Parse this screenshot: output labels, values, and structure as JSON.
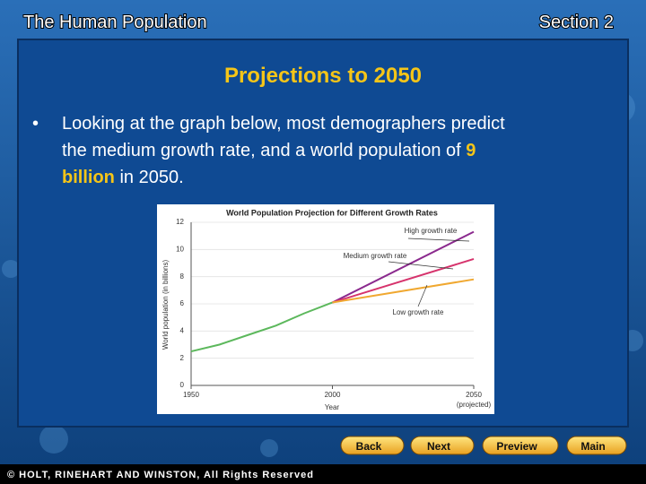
{
  "header": {
    "left": "The Human Population",
    "right": "Section 2"
  },
  "slide": {
    "title": "Projections to 2050",
    "bullet": [
      "Looking at the graph below, most demographers predict",
      "the medium growth rate, and a world population of ",
      "9",
      "billion",
      " in 2050."
    ]
  },
  "chart_data": {
    "type": "line",
    "title": "World Population Projection for Different Growth Rates",
    "y_label": "World population (in billions)",
    "x_label": "Year",
    "x_note": "(projected)",
    "xlim": [
      1950,
      2050
    ],
    "xticks": [
      1950,
      2000,
      2050
    ],
    "ylim": [
      0,
      12
    ],
    "yticks": [
      0,
      2,
      4,
      6,
      8,
      10,
      12
    ],
    "grid": true,
    "series": [
      {
        "color": "#5cb85c",
        "x": [
          1950,
          1960,
          1970,
          1980,
          1990,
          2000
        ],
        "values": [
          2.5,
          3.0,
          3.7,
          4.4,
          5.3,
          6.1
        ]
      },
      {
        "name": "High growth rate",
        "color": "#8b2a8e",
        "x": [
          2000,
          2050
        ],
        "values": [
          6.1,
          11.3
        ]
      },
      {
        "name": "Medium growth rate",
        "color": "#d6336c",
        "x": [
          2000,
          2050
        ],
        "values": [
          6.1,
          9.3
        ]
      },
      {
        "name": "Low growth rate",
        "color": "#f0a830",
        "x": [
          2000,
          2050
        ],
        "values": [
          6.1,
          7.8
        ]
      }
    ]
  },
  "navigation": [
    "Back",
    "Next",
    "Preview",
    "Main"
  ],
  "footer": "© HOLT, RINEHART AND WINSTON, All Rights Reserved"
}
